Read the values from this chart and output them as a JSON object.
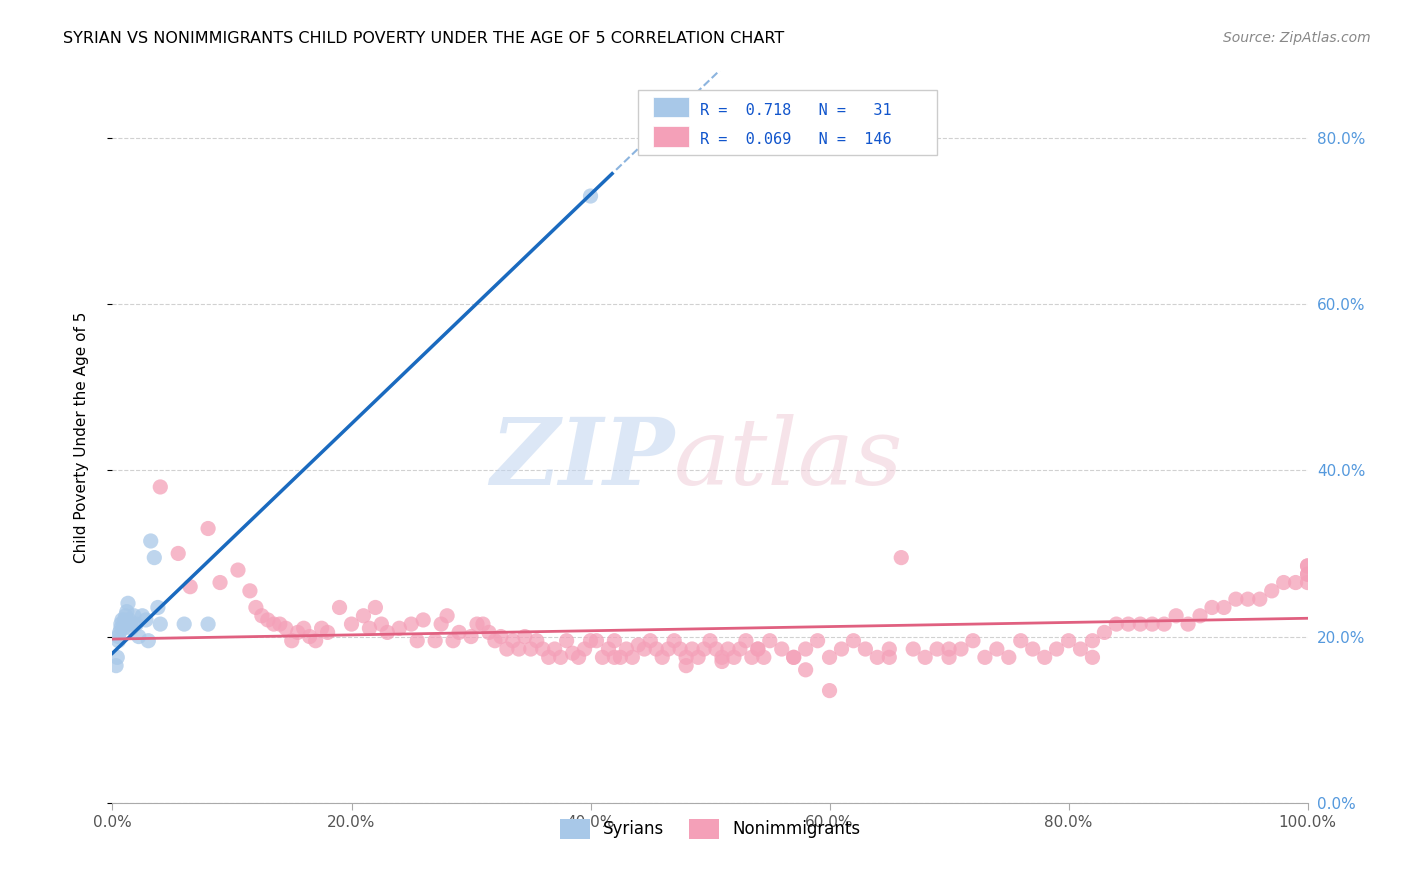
{
  "title": "SYRIAN VS NONIMMIGRANTS CHILD POVERTY UNDER THE AGE OF 5 CORRELATION CHART",
  "source": "Source: ZipAtlas.com",
  "ylabel": "Child Poverty Under the Age of 5",
  "xlim": [
    0,
    1.0
  ],
  "ylim": [
    0.0,
    0.88
  ],
  "xticks": [
    0.0,
    0.2,
    0.4,
    0.6,
    0.8,
    1.0
  ],
  "yticks": [
    0.0,
    0.2,
    0.4,
    0.6,
    0.8
  ],
  "ytick_labels": [
    "0.0%",
    "20.0%",
    "40.0%",
    "60.0%",
    "80.0%"
  ],
  "xtick_labels": [
    "0.0%",
    "20.0%",
    "40.0%",
    "60.0%",
    "80.0%",
    "100.0%"
  ],
  "syrian_R": 0.718,
  "syrian_N": 31,
  "nonimm_R": 0.069,
  "nonimm_N": 146,
  "syrian_color": "#a8c8e8",
  "nonimm_color": "#f4a0b8",
  "syrian_line_color": "#1a6abf",
  "nonimm_line_color": "#e06080",
  "legend_label_syrian": "Syrians",
  "legend_label_nonimm": "Nonimmigrants",
  "background_color": "#ffffff",
  "grid_color": "#cccccc",
  "syrian_x": [
    0.003,
    0.004,
    0.005,
    0.005,
    0.006,
    0.007,
    0.007,
    0.008,
    0.009,
    0.01,
    0.01,
    0.011,
    0.012,
    0.013,
    0.014,
    0.015,
    0.016,
    0.017,
    0.018,
    0.02,
    0.022,
    0.025,
    0.028,
    0.03,
    0.032,
    0.035,
    0.038,
    0.04,
    0.06,
    0.08,
    0.4
  ],
  "syrian_y": [
    0.165,
    0.175,
    0.195,
    0.2,
    0.205,
    0.215,
    0.21,
    0.22,
    0.21,
    0.215,
    0.22,
    0.225,
    0.23,
    0.24,
    0.22,
    0.215,
    0.21,
    0.215,
    0.225,
    0.215,
    0.2,
    0.225,
    0.22,
    0.195,
    0.315,
    0.295,
    0.235,
    0.215,
    0.215,
    0.215,
    0.73
  ],
  "nonimm_x": [
    0.04,
    0.055,
    0.065,
    0.08,
    0.09,
    0.105,
    0.115,
    0.12,
    0.125,
    0.13,
    0.135,
    0.14,
    0.145,
    0.15,
    0.155,
    0.16,
    0.165,
    0.17,
    0.175,
    0.18,
    0.19,
    0.2,
    0.21,
    0.215,
    0.22,
    0.225,
    0.23,
    0.24,
    0.25,
    0.255,
    0.26,
    0.27,
    0.275,
    0.28,
    0.285,
    0.29,
    0.3,
    0.305,
    0.31,
    0.315,
    0.32,
    0.325,
    0.33,
    0.335,
    0.34,
    0.345,
    0.35,
    0.355,
    0.36,
    0.365,
    0.37,
    0.375,
    0.38,
    0.385,
    0.39,
    0.395,
    0.4,
    0.405,
    0.41,
    0.415,
    0.42,
    0.425,
    0.43,
    0.435,
    0.44,
    0.445,
    0.45,
    0.455,
    0.46,
    0.465,
    0.47,
    0.475,
    0.48,
    0.485,
    0.49,
    0.495,
    0.5,
    0.505,
    0.51,
    0.515,
    0.52,
    0.525,
    0.53,
    0.535,
    0.54,
    0.545,
    0.55,
    0.56,
    0.57,
    0.58,
    0.59,
    0.6,
    0.61,
    0.62,
    0.63,
    0.64,
    0.65,
    0.66,
    0.67,
    0.68,
    0.69,
    0.7,
    0.71,
    0.72,
    0.73,
    0.74,
    0.75,
    0.76,
    0.77,
    0.78,
    0.79,
    0.8,
    0.81,
    0.82,
    0.83,
    0.84,
    0.85,
    0.86,
    0.87,
    0.88,
    0.89,
    0.9,
    0.91,
    0.92,
    0.93,
    0.94,
    0.95,
    0.96,
    0.97,
    0.98,
    0.99,
    1.0,
    1.0,
    1.0,
    1.0,
    1.0,
    0.42,
    0.48,
    0.51,
    0.54,
    0.57,
    0.58,
    0.6,
    0.65,
    0.7,
    0.82
  ],
  "nonimm_y": [
    0.38,
    0.3,
    0.26,
    0.33,
    0.265,
    0.28,
    0.255,
    0.235,
    0.225,
    0.22,
    0.215,
    0.215,
    0.21,
    0.195,
    0.205,
    0.21,
    0.2,
    0.195,
    0.21,
    0.205,
    0.235,
    0.215,
    0.225,
    0.21,
    0.235,
    0.215,
    0.205,
    0.21,
    0.215,
    0.195,
    0.22,
    0.195,
    0.215,
    0.225,
    0.195,
    0.205,
    0.2,
    0.215,
    0.215,
    0.205,
    0.195,
    0.2,
    0.185,
    0.195,
    0.185,
    0.2,
    0.185,
    0.195,
    0.185,
    0.175,
    0.185,
    0.175,
    0.195,
    0.18,
    0.175,
    0.185,
    0.195,
    0.195,
    0.175,
    0.185,
    0.195,
    0.175,
    0.185,
    0.175,
    0.19,
    0.185,
    0.195,
    0.185,
    0.175,
    0.185,
    0.195,
    0.185,
    0.175,
    0.185,
    0.175,
    0.185,
    0.195,
    0.185,
    0.175,
    0.185,
    0.175,
    0.185,
    0.195,
    0.175,
    0.185,
    0.175,
    0.195,
    0.185,
    0.175,
    0.185,
    0.195,
    0.175,
    0.185,
    0.195,
    0.185,
    0.175,
    0.185,
    0.295,
    0.185,
    0.175,
    0.185,
    0.175,
    0.185,
    0.195,
    0.175,
    0.185,
    0.175,
    0.195,
    0.185,
    0.175,
    0.185,
    0.195,
    0.185,
    0.195,
    0.205,
    0.215,
    0.215,
    0.215,
    0.215,
    0.215,
    0.225,
    0.215,
    0.225,
    0.235,
    0.235,
    0.245,
    0.245,
    0.245,
    0.255,
    0.265,
    0.265,
    0.265,
    0.275,
    0.275,
    0.285,
    0.285,
    0.175,
    0.165,
    0.17,
    0.185,
    0.175,
    0.16,
    0.135,
    0.175,
    0.185,
    0.175
  ],
  "syrian_line_x0": 0.0,
  "syrian_line_y0": 0.18,
  "syrian_line_slope": 1.38,
  "nonimm_line_x0": 0.0,
  "nonimm_line_y0": 0.197,
  "nonimm_line_slope": 0.025
}
